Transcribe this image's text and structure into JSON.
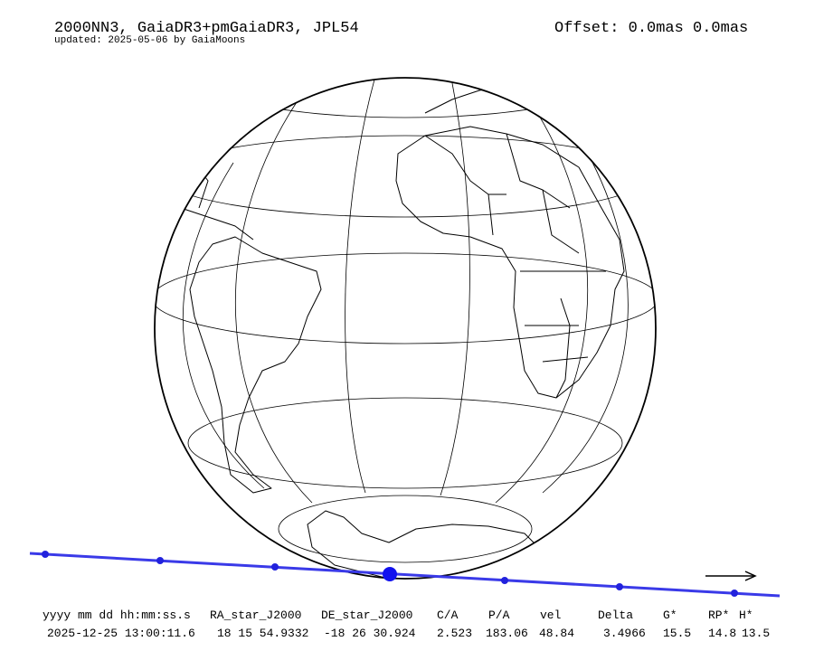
{
  "header": {
    "title": "2000NN3, GaiaDR3+pmGaiaDR3, JPL54",
    "updated": "updated: 2025-05-06 by GaiaMoons",
    "offset": "Offset: 0.0mas 0.0mas"
  },
  "table": {
    "headers": [
      "yyyy mm dd hh:mm:ss.s",
      "RA_star_J2000",
      "DE_star_J2000",
      "C/A",
      "P/A",
      "vel",
      "Delta",
      "G*",
      "RP*",
      "H*"
    ],
    "rows": [
      [
        "2025-12-25 13:00:11.6",
        "18 15 54.9332",
        "-18 26 30.924",
        "2.523",
        "183.06",
        "48.84",
        "3.4966",
        "15.5",
        "14.8",
        "13.5"
      ]
    ]
  }
}
